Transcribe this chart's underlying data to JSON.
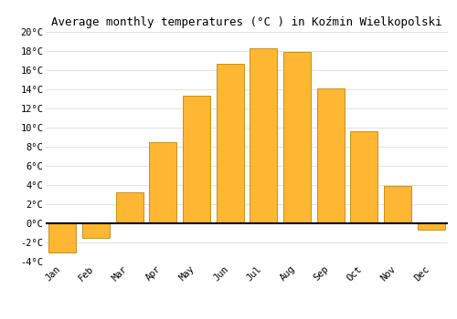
{
  "months": [
    "Jan",
    "Feb",
    "Mar",
    "Apr",
    "May",
    "Jun",
    "Jul",
    "Aug",
    "Sep",
    "Oct",
    "Nov",
    "Dec"
  ],
  "temperatures": [
    -3.0,
    -1.5,
    3.2,
    8.5,
    13.3,
    16.7,
    18.3,
    17.9,
    14.1,
    9.6,
    3.9,
    -0.7
  ],
  "bar_color": "#FFB733",
  "bar_edge_color": "#B8860B",
  "background_color": "#FFFFFF",
  "grid_color": "#DDDDDD",
  "title": "Average monthly temperatures (°C ) in Koźmin Wielkopolski",
  "title_fontsize": 9,
  "ylim": [
    -4,
    20
  ],
  "yticks": [
    -4,
    -2,
    0,
    2,
    4,
    6,
    8,
    10,
    12,
    14,
    16,
    18,
    20
  ],
  "tick_fontsize": 7.5,
  "zero_line_color": "#000000",
  "figsize": [
    5.0,
    3.5
  ],
  "dpi": 100,
  "bar_width": 0.82
}
